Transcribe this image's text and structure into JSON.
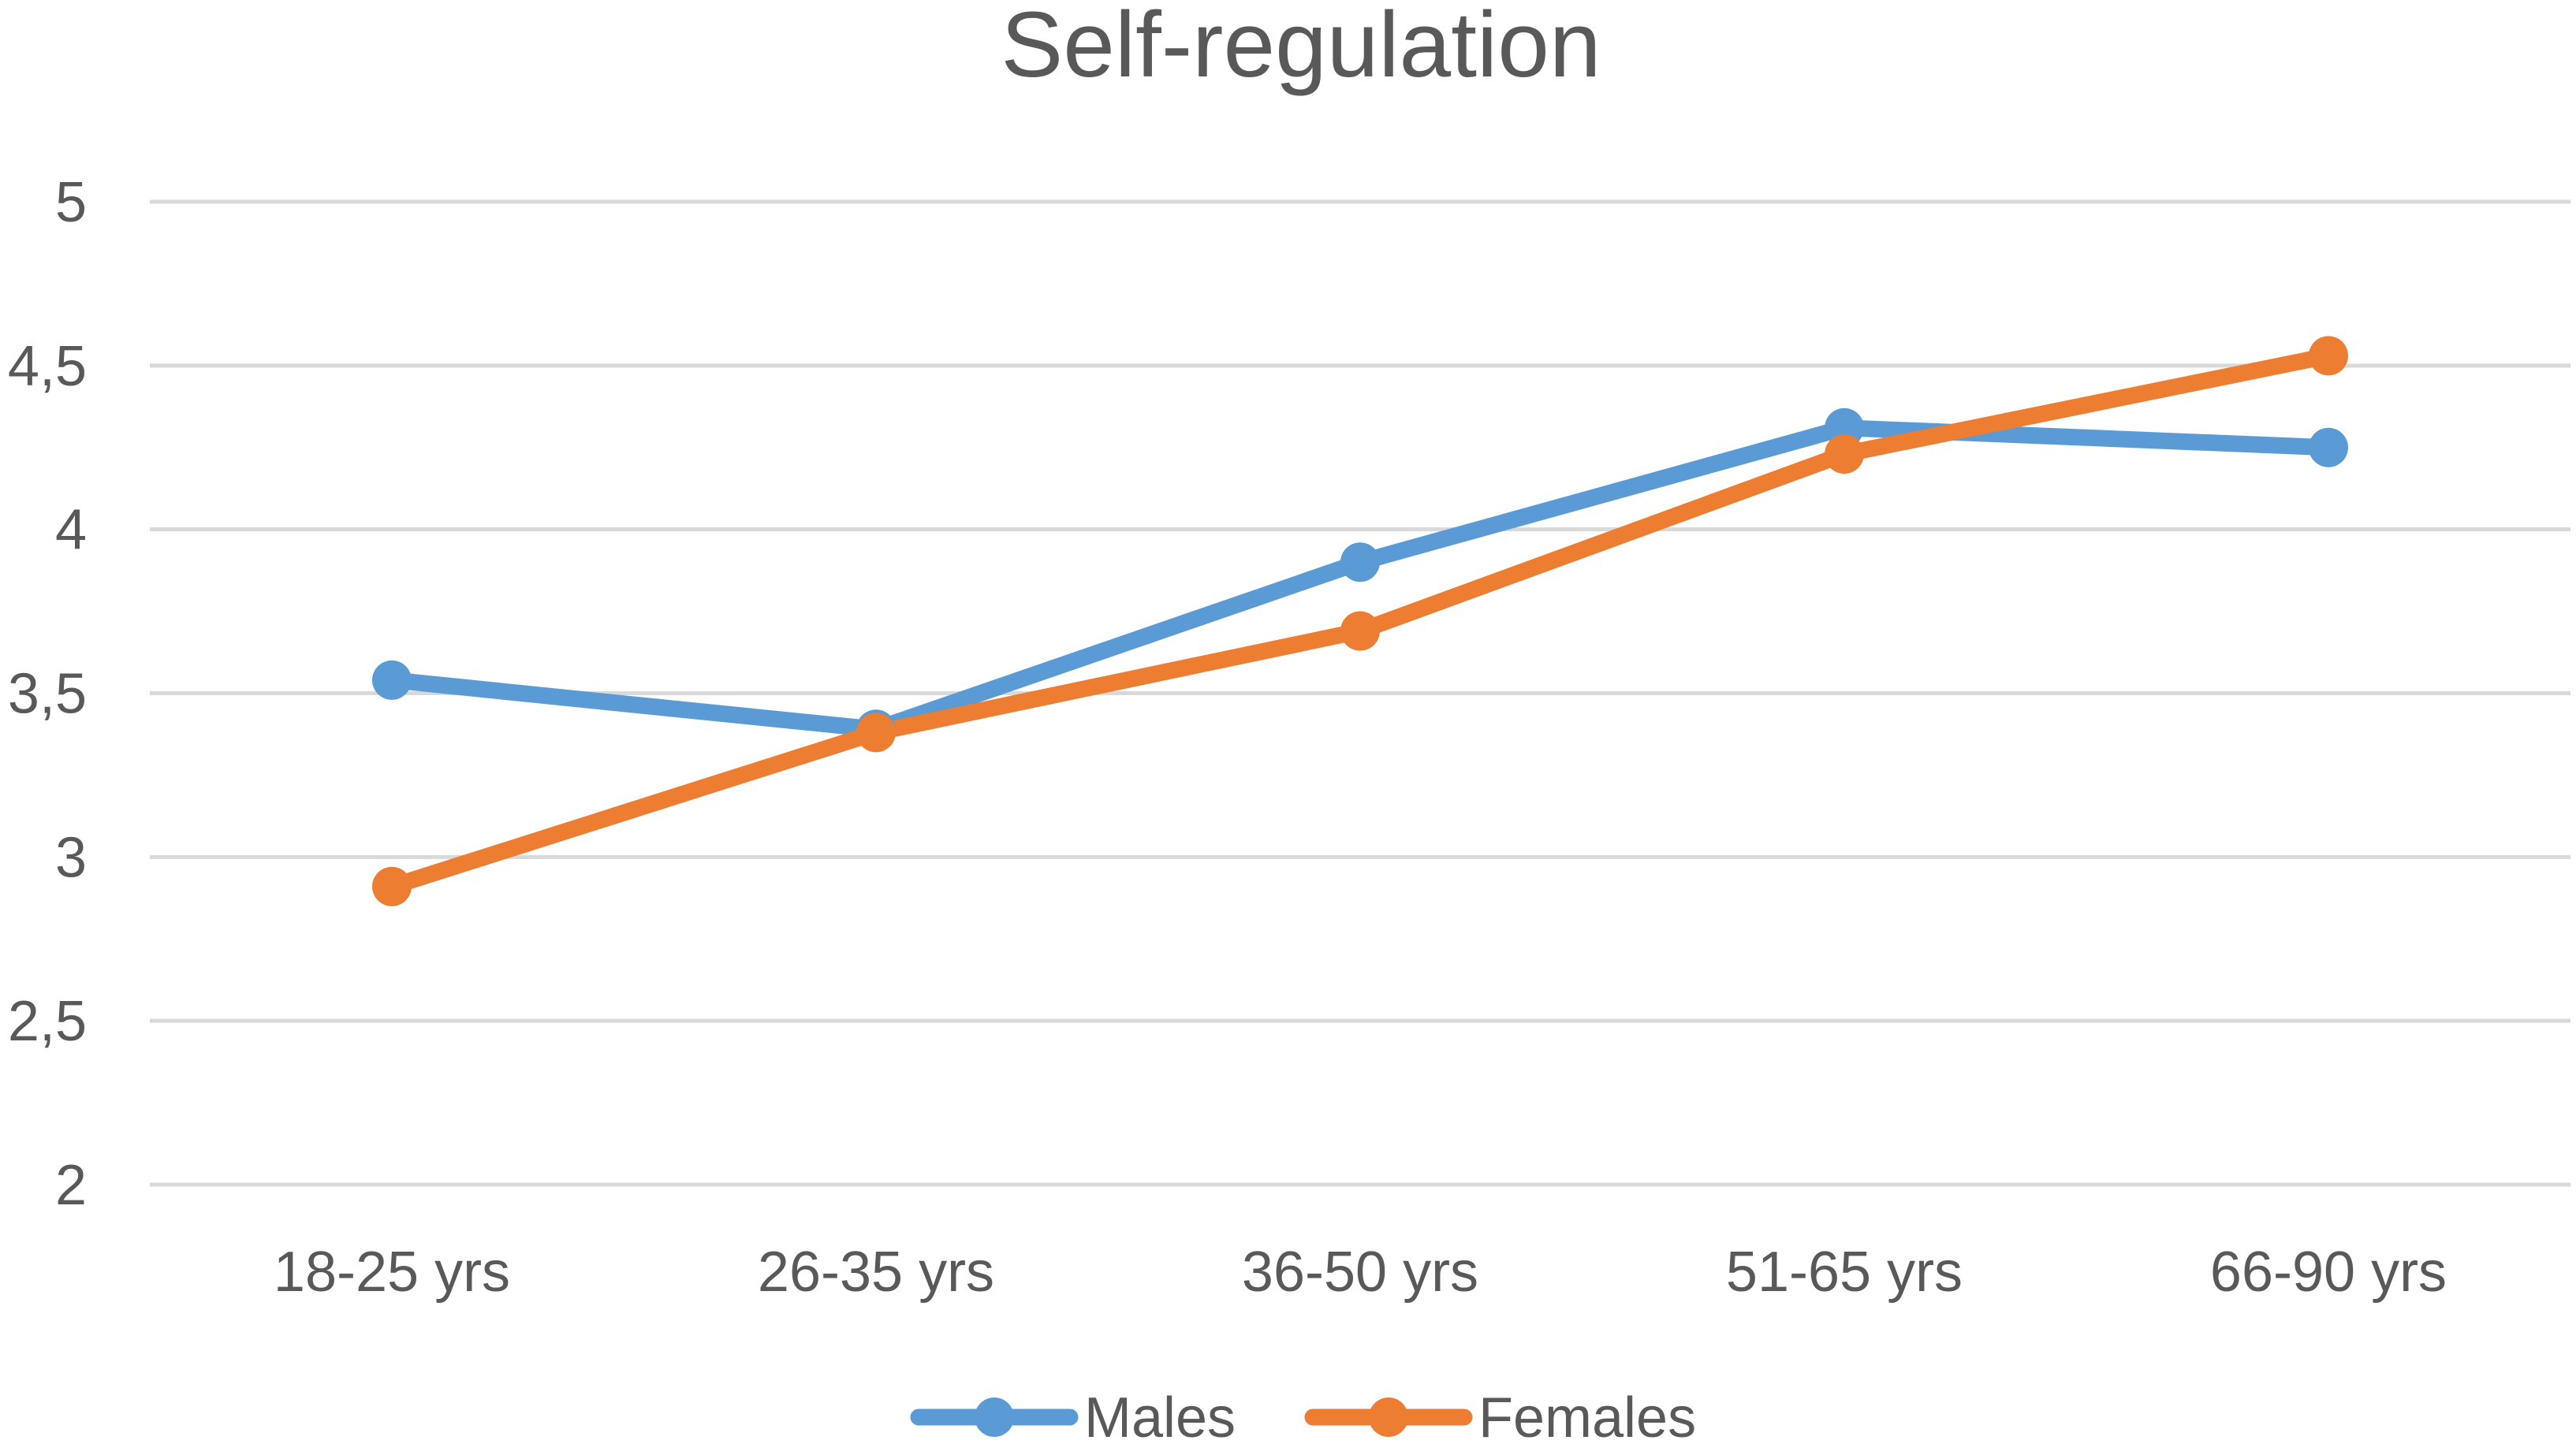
{
  "chart_data": {
    "type": "line",
    "title": "Self-regulation",
    "xlabel": "",
    "ylabel": "",
    "categories": [
      "18-25 yrs",
      "26-35 yrs",
      "36-50 yrs",
      "51-65 yrs",
      "66-90 yrs"
    ],
    "y_ticks": [
      "2",
      "2,5",
      "3",
      "3,5",
      "4",
      "4,5",
      "5"
    ],
    "ylim": [
      2,
      5
    ],
    "grid": true,
    "legend_position": "bottom",
    "series": [
      {
        "name": "Males",
        "color": "#5B9BD5",
        "values": [
          3.54,
          3.39,
          3.9,
          4.31,
          4.25
        ]
      },
      {
        "name": "Females",
        "color": "#ED7D31",
        "values": [
          2.91,
          3.38,
          3.69,
          4.23,
          4.53
        ]
      }
    ]
  }
}
